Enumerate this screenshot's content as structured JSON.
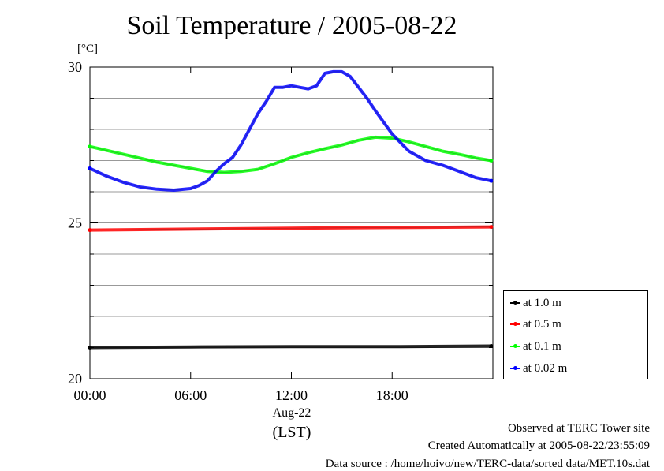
{
  "chart_data": {
    "type": "line",
    "title": "Soil Temperature / 2005-08-22",
    "ylabel_unit": "[°C]",
    "xlabel_date": "Aug-22",
    "xlabel_unit": "(LST)",
    "ylim": [
      20,
      30
    ],
    "yticks": [
      "20",
      "25",
      "30"
    ],
    "xlim": [
      0,
      24
    ],
    "xticks": [
      {
        "hour": 0,
        "label": "00:00"
      },
      {
        "hour": 6,
        "label": "06:00"
      },
      {
        "hour": 12,
        "label": "12:00"
      },
      {
        "hour": 18,
        "label": "18:00"
      }
    ],
    "grid": true,
    "legend_position": "right",
    "series": [
      {
        "name": "at 1.0 m",
        "color": "#000000",
        "x": [
          0,
          6,
          12,
          18,
          23.9
        ],
        "y": [
          21.0,
          21.02,
          21.03,
          21.03,
          21.05
        ]
      },
      {
        "name": "at 0.5 m",
        "color": "#ff0000",
        "x": [
          0,
          6,
          12,
          18,
          23.9
        ],
        "y": [
          24.77,
          24.8,
          24.83,
          24.85,
          24.87
        ]
      },
      {
        "name": "at 0.1 m",
        "color": "#00ff00",
        "x": [
          0,
          2,
          4,
          6,
          7,
          8,
          9,
          10,
          11,
          12,
          13,
          14,
          15,
          16,
          17,
          18,
          19,
          20,
          21,
          22,
          23,
          23.9
        ],
        "y": [
          27.45,
          27.2,
          26.95,
          26.75,
          26.65,
          26.62,
          26.65,
          26.72,
          26.9,
          27.1,
          27.25,
          27.38,
          27.5,
          27.65,
          27.75,
          27.72,
          27.6,
          27.45,
          27.3,
          27.2,
          27.08,
          27.0
        ]
      },
      {
        "name": "at 0.02 m",
        "color": "#0000ff",
        "x": [
          0,
          1,
          2,
          3,
          4,
          5,
          6,
          6.5,
          7,
          7.5,
          8,
          8.5,
          9,
          9.5,
          10,
          10.5,
          11,
          11.5,
          12,
          12.5,
          13,
          13.5,
          14,
          14.5,
          15,
          15.5,
          16,
          16.5,
          17,
          18,
          19,
          20,
          21,
          22,
          23,
          23.9
        ],
        "y": [
          26.75,
          26.5,
          26.3,
          26.15,
          26.08,
          26.05,
          26.1,
          26.2,
          26.35,
          26.65,
          26.9,
          27.1,
          27.5,
          28.0,
          28.5,
          28.9,
          29.35,
          29.35,
          29.4,
          29.35,
          29.3,
          29.4,
          29.8,
          29.85,
          29.85,
          29.7,
          29.35,
          29.0,
          28.6,
          27.85,
          27.3,
          27.0,
          26.85,
          26.65,
          26.45,
          26.35
        ]
      }
    ]
  },
  "footer": {
    "line1": "Observed at TERC Tower site",
    "line2": "Created Automatically at 2005-08-22/23:55:09",
    "line3": "Data source : /home/hoivo/new/TERC-data/sorted  data/MET.10s.dat"
  }
}
